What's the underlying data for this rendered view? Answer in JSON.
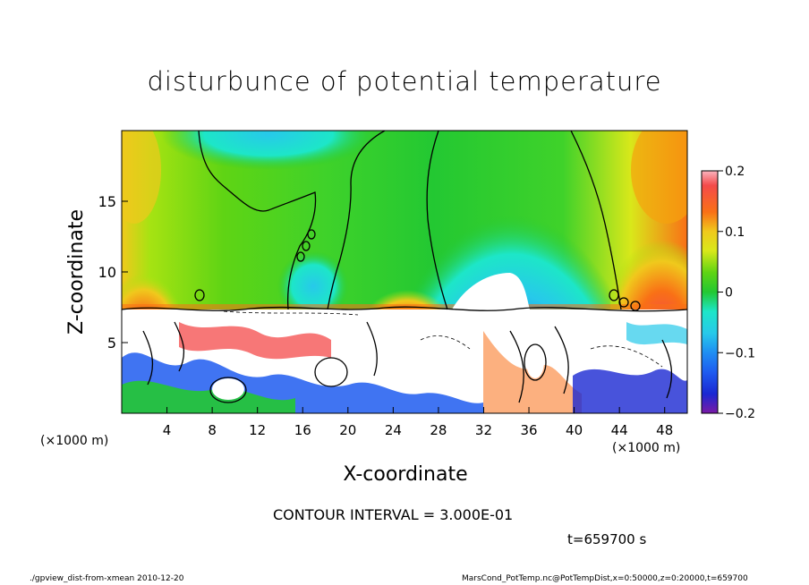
{
  "chart_data": {
    "type": "heatmap",
    "title": "disturbunce of potential temperature",
    "xlabel": "X-coordinate",
    "ylabel": "Z-coordinate",
    "x_unit": "(×1000 m)",
    "y_unit": "(×1000 m)",
    "xlim": [
      0,
      50
    ],
    "ylim": [
      0,
      20
    ],
    "x_ticks": [
      "4",
      "8",
      "12",
      "16",
      "20",
      "24",
      "28",
      "32",
      "36",
      "40",
      "44",
      "48"
    ],
    "y_ticks": [
      "5",
      "10",
      "15"
    ],
    "colorbar": {
      "ticks": [
        "0.2",
        "0.1",
        "0",
        "−0.1",
        "−0.2"
      ],
      "range": [
        -0.2,
        0.2
      ],
      "colors": [
        "#fbb4bf",
        "#f44a4a",
        "#f97016",
        "#f5a30e",
        "#f0c91c",
        "#d9e81a",
        "#a6e312",
        "#5fd414",
        "#23c832",
        "#12d27a",
        "#1de6c8",
        "#27c9ea",
        "#1f8ef2",
        "#1e5cf0",
        "#1a28d2",
        "#4a16b6",
        "#7a1aa6"
      ]
    },
    "contour_interval_text": "CONTOUR INTERVAL = 3.000E-01",
    "time_text": "t=659700 s"
  },
  "footer": {
    "left": "./gpview_dist-from-xmean   2010-12-20",
    "right": "MarsCond_PotTemp.nc@PotTempDist,x=0:50000,z=0:20000,t=659700"
  }
}
